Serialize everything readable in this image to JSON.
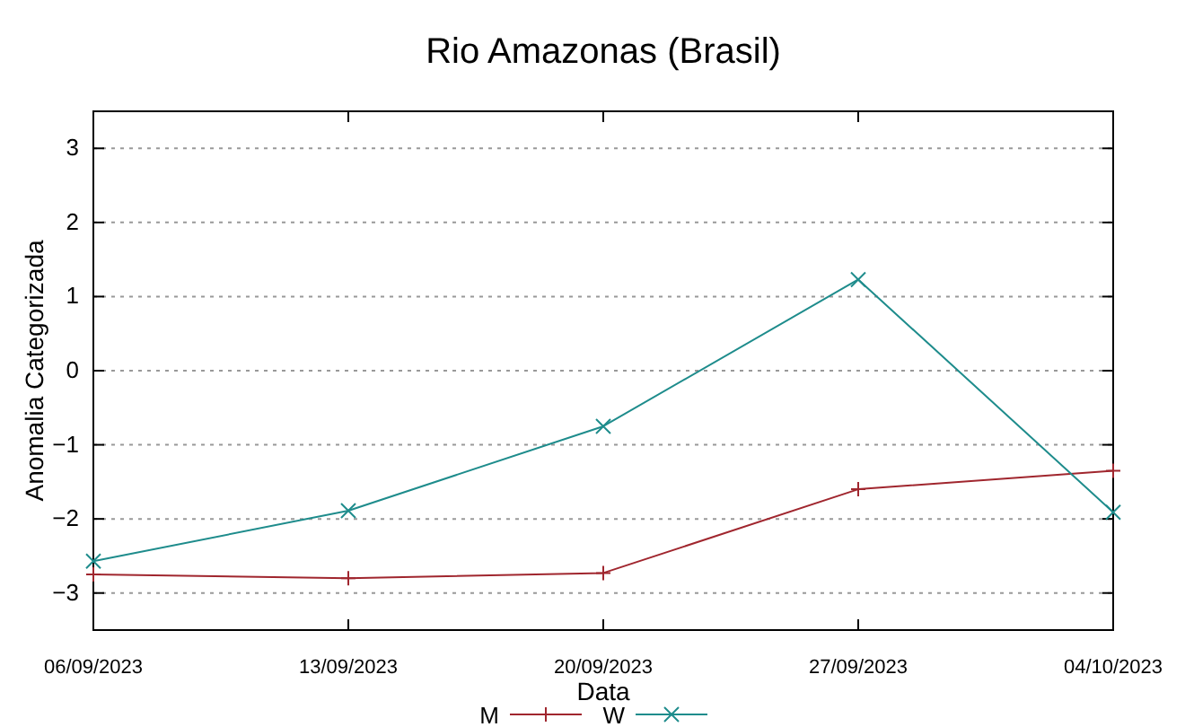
{
  "chart_data": {
    "type": "line",
    "title": "Rio Amazonas (Brasil)",
    "xlabel": "Data",
    "ylabel": "Anomalia Categorizada",
    "x": [
      "2023-09-06",
      "2023-09-13",
      "2023-09-20",
      "2023-09-27",
      "2023-10-04"
    ],
    "xlim": [
      "2023-09-06",
      "2023-10-04"
    ],
    "xticks": [
      {
        "value": "2023-09-06",
        "label": "06/09/2023"
      },
      {
        "value": "2023-09-13",
        "label": "13/09/2023"
      },
      {
        "value": "2023-09-20",
        "label": "20/09/2023"
      },
      {
        "value": "2023-09-27",
        "label": "27/09/2023"
      },
      {
        "value": "2023-10-04",
        "label": "04/10/2023"
      }
    ],
    "ylim": [
      -3.5,
      3.5
    ],
    "yticks": [
      -3,
      -2,
      -1,
      0,
      1,
      2,
      3
    ],
    "grid": "y",
    "legend": "bottom",
    "series": [
      {
        "name": "M",
        "color": "#a0262e",
        "marker": "cross",
        "values": [
          -2.75,
          -2.8,
          -2.73,
          -1.6,
          -1.35
        ]
      },
      {
        "name": "W",
        "color": "#1e8c8c",
        "marker": "x",
        "values": [
          -2.57,
          -1.89,
          -0.75,
          1.23,
          -1.91
        ]
      }
    ]
  }
}
